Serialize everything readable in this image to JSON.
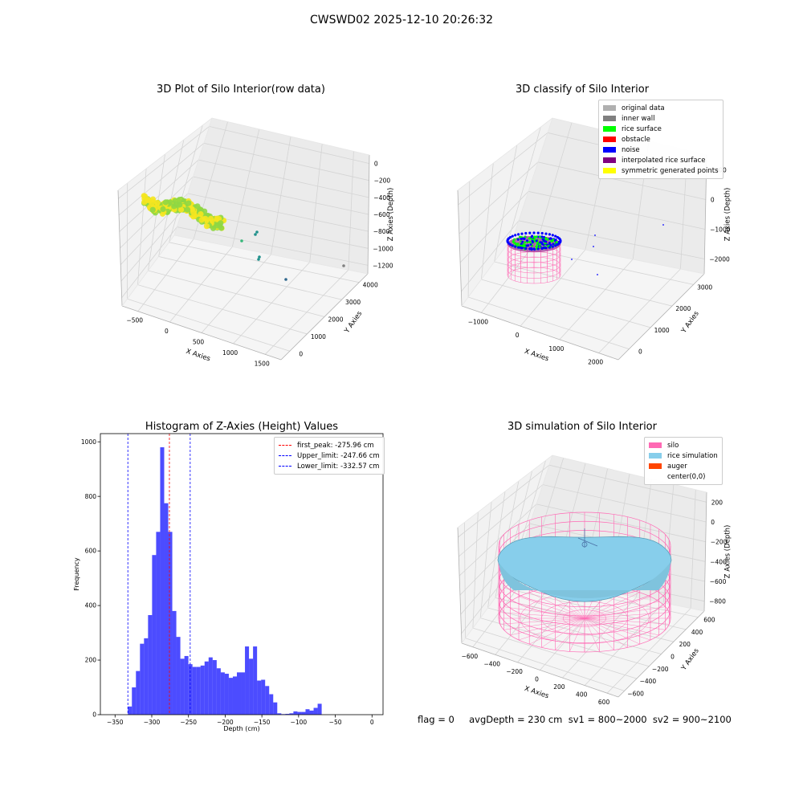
{
  "suptitle": "CWSWD02 2025-12-10 20:26:32",
  "footer": "flag = 0     avgDepth = 230 cm  sv1 = 800~2000  sv2 = 900~2100",
  "chart_data": [
    {
      "type": "scatter3d",
      "title": "3D Plot of Silo Interior(row data)",
      "xlabel": "X Axies",
      "ylabel": "Y Axies",
      "zlabel": "Z Axies (Depth)",
      "xticks": [
        "−500",
        "0",
        "500",
        "1000",
        "1500"
      ],
      "yticks": [
        "0",
        "1000",
        "2000",
        "3000",
        "4000"
      ],
      "zticks": [
        "0",
        "−200",
        "−400",
        "−600",
        "−800",
        "−1000",
        "−1200"
      ],
      "colormap": [
        "#f5e51f",
        "#8fd744",
        "#35b779",
        "#21918c",
        "#31688e",
        "#808080"
      ]
    },
    {
      "type": "scatter3d",
      "title": "3D classify of Silo Interior",
      "xlabel": "X Axies",
      "ylabel": "Y Axies",
      "zlabel": "Z Axies (Depth)",
      "xticks": [
        "−1000",
        "0",
        "1000",
        "2000"
      ],
      "yticks": [
        "0",
        "1000",
        "2000",
        "3000"
      ],
      "zticks": [
        "1000",
        "0",
        "−1000",
        "−2000"
      ],
      "legend": [
        {
          "name": "original data",
          "color": "#b0b0b0"
        },
        {
          "name": "inner wall",
          "color": "#808080"
        },
        {
          "name": "rice surface",
          "color": "#00ff00"
        },
        {
          "name": "obstacle",
          "color": "#ff0000"
        },
        {
          "name": "noise",
          "color": "#0000ff"
        },
        {
          "name": "interpolated rice surface",
          "color": "#800080"
        },
        {
          "name": "symmetric generated points",
          "color": "#ffff00"
        }
      ]
    },
    {
      "type": "bar",
      "title": "Histogram of Z-Axies (Height) Values",
      "xlabel": "Depth (cm)",
      "ylabel": "Frequency",
      "xlim": [
        -370,
        15
      ],
      "ylim": [
        0,
        1030
      ],
      "xticks": [
        -350,
        -300,
        -250,
        -200,
        -150,
        -100,
        -50,
        0
      ],
      "yticks": [
        0,
        200,
        400,
        600,
        800,
        1000
      ],
      "bin_width": 5.5,
      "bin_start": -332.57,
      "values": [
        30,
        100,
        160,
        260,
        280,
        365,
        585,
        670,
        980,
        775,
        670,
        380,
        285,
        205,
        215,
        185,
        175,
        175,
        180,
        195,
        210,
        200,
        170,
        155,
        150,
        135,
        140,
        155,
        155,
        250,
        205,
        250,
        125,
        128,
        105,
        75,
        45,
        5,
        2,
        3,
        5,
        12,
        10,
        10,
        20,
        15,
        25,
        40
      ],
      "bar_color": "#0000ff",
      "lines": [
        {
          "name": "first_peak: -275.96 cm",
          "x": -275.96,
          "color": "#ff0000"
        },
        {
          "name": "Upper_limit: -247.66 cm",
          "x": -247.66,
          "color": "#0000ff"
        },
        {
          "name": "Lower_limit: -332.57 cm",
          "x": -332.57,
          "color": "#0000ff"
        }
      ],
      "legend_position": "top-right"
    },
    {
      "type": "surface3d",
      "title": "3D simulation of Silo Interior",
      "xlabel": "X Axies",
      "ylabel": "Y Axies",
      "zlabel": "Z Axies (Depth)",
      "xticks": [
        "−600",
        "−400",
        "−200",
        "0",
        "200",
        "400",
        "600"
      ],
      "yticks": [
        "−600",
        "−400",
        "−200",
        "0",
        "200",
        "400",
        "600"
      ],
      "zticks": [
        "200",
        "0",
        "−200",
        "−400",
        "−600",
        "−800"
      ],
      "legend": [
        {
          "name": "silo",
          "color": "#ff69b4"
        },
        {
          "name": "rice simulation",
          "color": "#87ceeb"
        },
        {
          "name": "auger",
          "color": "#ff4500"
        },
        {
          "name": "center(0,0)",
          "color": "#ffffff"
        }
      ]
    }
  ]
}
